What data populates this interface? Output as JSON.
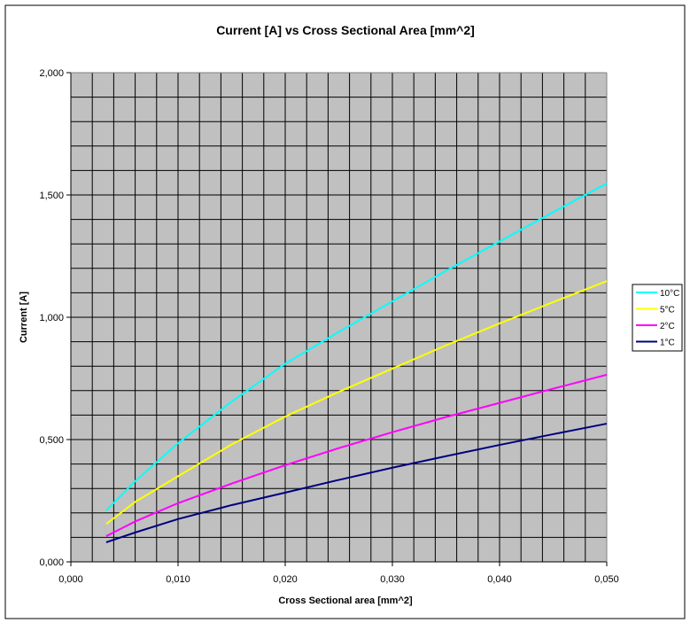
{
  "chart_data": {
    "type": "line",
    "title": "Current [A] vs Cross Sectional Area [mm^2]",
    "xlabel": "Cross Sectional area [mm^2]",
    "ylabel": "Current [A]",
    "xlim": [
      0,
      0.05
    ],
    "ylim": [
      0,
      2.0
    ],
    "x_ticks": [
      "0,000",
      "0,010",
      "0,020",
      "0,030",
      "0,040",
      "0,050"
    ],
    "y_ticks": [
      "0,000",
      "0,500",
      "1,000",
      "1,500",
      "2,000"
    ],
    "grid": true,
    "legend_position": "right",
    "plot_background": "#c0c0c0",
    "x": [
      0.0033,
      0.006,
      0.01,
      0.015,
      0.02,
      0.025,
      0.03,
      0.035,
      0.04,
      0.045,
      0.05
    ],
    "series": [
      {
        "name": "10°C",
        "color": "#00ffff",
        "values": [
          0.21,
          0.33,
          0.485,
          0.655,
          0.81,
          0.94,
          1.065,
          1.19,
          1.31,
          1.43,
          1.547
        ]
      },
      {
        "name": "5°C",
        "color": "#ffff00",
        "values": [
          0.155,
          0.245,
          0.35,
          0.48,
          0.594,
          0.695,
          0.79,
          0.885,
          0.975,
          1.062,
          1.148
        ]
      },
      {
        "name": "2°C",
        "color": "#ff00ff",
        "values": [
          0.105,
          0.165,
          0.24,
          0.32,
          0.395,
          0.465,
          0.53,
          0.592,
          0.65,
          0.708,
          0.765
        ]
      },
      {
        "name": "1°C",
        "color": "#000080",
        "values": [
          0.08,
          0.12,
          0.175,
          0.232,
          0.283,
          0.335,
          0.385,
          0.432,
          0.478,
          0.522,
          0.565
        ]
      }
    ]
  }
}
